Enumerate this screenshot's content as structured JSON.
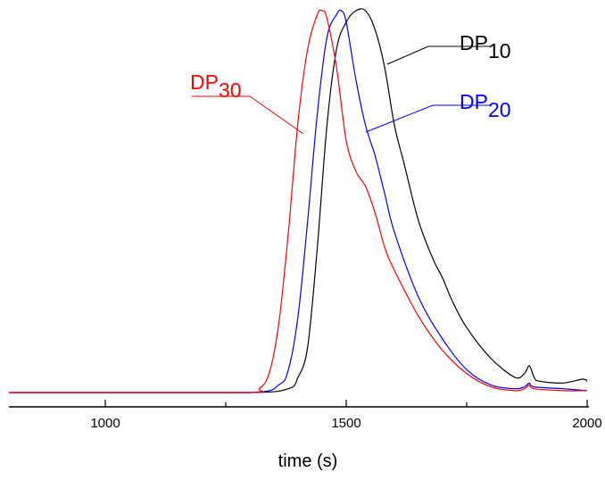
{
  "chart_data": {
    "type": "line",
    "title": "",
    "xlabel": "time (s)",
    "ylabel": "",
    "xlim": [
      800,
      2000
    ],
    "ylim": [
      0,
      1
    ],
    "x_ticks_major": [
      1000,
      1500,
      2000
    ],
    "x_ticks_minor": [
      1250,
      1750
    ],
    "grid": false,
    "legend": "none",
    "series": [
      {
        "name": "DP10",
        "label_base": "DP",
        "label_sub": "10",
        "color": "#000000",
        "x": [
          800,
          1000,
          1300,
          1380,
          1400,
          1420,
          1440,
          1460,
          1480,
          1500,
          1520,
          1540,
          1560,
          1580,
          1600,
          1620,
          1650,
          1680,
          1700,
          1720,
          1750,
          1800,
          1850,
          1870,
          1880,
          1890,
          1900,
          1950,
          1990,
          2000
        ],
        "y": [
          0,
          0,
          0,
          0.01,
          0.04,
          0.12,
          0.38,
          0.7,
          0.9,
          0.97,
          1.0,
          1.0,
          0.95,
          0.85,
          0.7,
          0.6,
          0.45,
          0.35,
          0.3,
          0.24,
          0.17,
          0.09,
          0.04,
          0.05,
          0.07,
          0.04,
          0.03,
          0.025,
          0.035,
          0.03
        ]
      },
      {
        "name": "DP20",
        "label_base": "DP",
        "label_sub": "20",
        "color": "#0000ff",
        "x": [
          800,
          1000,
          1300,
          1360,
          1380,
          1400,
          1420,
          1440,
          1460,
          1480,
          1490,
          1500,
          1520,
          1540,
          1560,
          1580,
          1600,
          1650,
          1700,
          1750,
          1800,
          1850,
          1870,
          1880,
          1890,
          1950,
          2000
        ],
        "y": [
          0,
          0,
          0,
          0.02,
          0.06,
          0.2,
          0.45,
          0.73,
          0.93,
          0.99,
          1.0,
          0.97,
          0.82,
          0.7,
          0.62,
          0.52,
          0.42,
          0.25,
          0.14,
          0.06,
          0.02,
          0.01,
          0.015,
          0.025,
          0.015,
          0.01,
          0.005
        ]
      },
      {
        "name": "DP30",
        "label_base": "DP",
        "label_sub": "30",
        "color": "#ff0000",
        "x": [
          800,
          1000,
          1300,
          1320,
          1340,
          1360,
          1380,
          1400,
          1420,
          1440,
          1450,
          1460,
          1480,
          1500,
          1520,
          1540,
          1560,
          1580,
          1600,
          1650,
          1700,
          1750,
          1800,
          1850,
          1870,
          1880,
          1890,
          1950,
          2000
        ],
        "y": [
          0,
          0,
          0,
          0.01,
          0.05,
          0.18,
          0.42,
          0.71,
          0.9,
          0.99,
          1.0,
          0.98,
          0.85,
          0.66,
          0.58,
          0.54,
          0.47,
          0.38,
          0.32,
          0.2,
          0.11,
          0.05,
          0.015,
          0.005,
          0.01,
          0.02,
          0.01,
          0.005,
          0.005
        ]
      }
    ]
  }
}
